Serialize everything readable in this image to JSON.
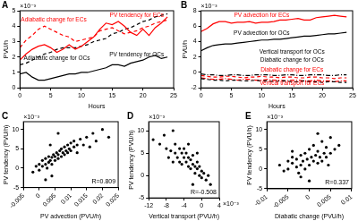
{
  "chart_data": [
    {
      "type": "line",
      "title": "A",
      "x_label": "Hours",
      "y_label": "PVU/h",
      "x": [
        0,
        1,
        2,
        3,
        4,
        5,
        6,
        7,
        8,
        9,
        10,
        11,
        12,
        13,
        14,
        15,
        16,
        17,
        18,
        19,
        20,
        21,
        22,
        23,
        24
      ],
      "xlim": [
        0,
        25
      ],
      "xticks": [
        0,
        5,
        10,
        15,
        20,
        25
      ],
      "ylim": [
        0,
        5
      ],
      "yticks": [
        0,
        1,
        2,
        3,
        4,
        5
      ],
      "grid": false,
      "annotations": [
        {
          "text": "×10⁻³",
          "axis": "y"
        }
      ],
      "series": [
        {
          "name": "PV tendency for ECs",
          "color": "#ff0000",
          "line_style": "solid",
          "values": [
            1.8,
            2.2,
            2.5,
            2.7,
            2.8,
            2.6,
            2.3,
            2.5,
            2.8,
            2.5,
            2.7,
            3.0,
            3.3,
            3.8,
            4.2,
            4.1,
            4.3,
            4.0,
            3.6,
            3.4,
            3.8,
            3.4,
            3.9,
            4.2,
            4.6
          ]
        },
        {
          "name": "Adiabatic change for ECs",
          "color": "#ff0000",
          "line_style": "dashed",
          "values": [
            2.6,
            3.1,
            3.4,
            3.8,
            4.0,
            3.8,
            3.6,
            3.4,
            3.3,
            3.0,
            3.1,
            3.2,
            3.3,
            3.7,
            3.8,
            3.9,
            3.7,
            3.5,
            3.6,
            3.7,
            3.9,
            4.0,
            4.2,
            4.3,
            4.4
          ]
        },
        {
          "name": "Adiabatic change for OCs",
          "color": "#000000",
          "line_style": "dashed",
          "values": [
            1.5,
            1.6,
            1.8,
            2.0,
            2.2,
            2.3,
            2.5,
            2.6,
            2.6,
            2.6,
            2.7,
            2.8,
            3.0,
            3.1,
            3.2,
            3.5,
            3.6,
            3.8,
            3.9,
            4.1,
            4.3,
            4.4,
            4.6,
            4.7,
            4.8
          ]
        },
        {
          "name": "PV tendency for OCs",
          "color": "#000000",
          "line_style": "solid",
          "values": [
            0.9,
            1.0,
            0.7,
            0.5,
            0.5,
            0.6,
            0.7,
            0.8,
            0.9,
            0.9,
            1.0,
            1.0,
            1.1,
            1.2,
            1.3,
            1.5,
            1.5,
            1.4,
            1.6,
            1.7,
            1.8,
            2.0,
            2.1,
            1.9,
            2.0
          ]
        }
      ]
    },
    {
      "type": "line",
      "title": "B",
      "x_label": "Hours",
      "y_label": "PVU/h",
      "x": [
        0,
        1,
        2,
        3,
        4,
        5,
        6,
        7,
        8,
        9,
        10,
        11,
        12,
        13,
        14,
        15,
        16,
        17,
        18,
        19,
        20,
        21,
        22,
        23,
        24
      ],
      "xlim": [
        0,
        25
      ],
      "xticks": [
        0,
        5,
        10,
        15,
        20,
        25
      ],
      "ylim": [
        -2,
        8
      ],
      "yticks": [
        -2,
        0,
        2,
        4,
        6,
        8
      ],
      "grid": false,
      "annotations": [
        {
          "text": "×10⁻³",
          "axis": "y"
        }
      ],
      "series": [
        {
          "name": "PV advection for ECs",
          "color": "#ff0000",
          "line_style": "solid",
          "values": [
            5.3,
            5.7,
            6.3,
            6.6,
            6.6,
            6.4,
            6.5,
            6.5,
            6.6,
            6.4,
            6.5,
            6.5,
            6.6,
            6.8,
            6.8,
            6.9,
            7.0,
            6.8,
            6.8,
            7.1,
            7.2,
            7.3,
            7.4,
            7.3,
            7.2
          ]
        },
        {
          "name": "PV advection for OCs",
          "color": "#000000",
          "line_style": "solid",
          "values": [
            2.8,
            3.2,
            3.5,
            3.6,
            3.7,
            3.7,
            3.8,
            3.9,
            4.0,
            4.1,
            4.2,
            4.2,
            4.3,
            4.3,
            4.4,
            4.5,
            4.6,
            4.7,
            4.7,
            4.8,
            4.9,
            5.0,
            5.0,
            5.1,
            5.2
          ]
        },
        {
          "name": "Vertical transport for OCs",
          "color": "#000000",
          "line_style": "dashed",
          "values": [
            -0.8,
            -0.9,
            -1.0,
            -1.0,
            -1.1,
            -1.0,
            -1.0,
            -1.1,
            -1.1,
            -1.0,
            -1.1,
            -1.1,
            -1.2,
            -1.1,
            -1.1,
            -1.2,
            -1.2,
            -1.1,
            -1.2,
            -1.2,
            -1.3,
            -1.2,
            -1.2,
            -1.3,
            -1.3
          ]
        },
        {
          "name": "Diabatic change for OCs",
          "color": "#000000",
          "line_style": "dashdot",
          "values": [
            -0.2,
            -0.3,
            -0.3,
            -0.4,
            -0.4,
            -0.3,
            -0.3,
            -0.4,
            -0.4,
            -0.3,
            -0.3,
            -0.3,
            -0.4,
            -0.4,
            -0.3,
            -0.3,
            -0.4,
            -0.4,
            -0.3,
            -0.3,
            -0.3,
            -0.4,
            -0.4,
            -0.3,
            -0.3
          ]
        },
        {
          "name": "Diabatic change for ECs",
          "color": "#ff0000",
          "line_style": "dashed",
          "values": [
            -0.4,
            -0.5,
            -0.6,
            -0.6,
            -0.5,
            -0.5,
            -0.6,
            -0.7,
            -0.6,
            -0.6,
            -0.5,
            -0.6,
            -0.6,
            -0.7,
            -0.6,
            -0.6,
            -0.7,
            -0.7,
            -0.6,
            -0.6,
            -0.7,
            -0.7,
            -0.8,
            -0.7,
            -0.7
          ]
        },
        {
          "name": "Vertical transport for ECs",
          "color": "#ff0000",
          "line_style": "dashdot",
          "values": [
            -0.7,
            -0.8,
            -0.9,
            -0.9,
            -0.8,
            -0.9,
            -1.0,
            -0.9,
            -0.9,
            -1.0,
            -1.0,
            -0.9,
            -1.0,
            -1.0,
            -1.1,
            -1.0,
            -1.0,
            -1.1,
            -1.1,
            -1.0,
            -1.1,
            -1.1,
            -1.2,
            -1.1,
            -1.1
          ]
        }
      ]
    },
    {
      "type": "scatter",
      "title": "C",
      "x_label": "PV advection (PVU/h)",
      "y_label": "PV tendency (PVU/h)",
      "color": "#000000",
      "marker": "circle",
      "grid": false,
      "xlim": [
        -0.005,
        0.025
      ],
      "xticks": [
        -0.005,
        0,
        0.005,
        0.01,
        0.015,
        0.02,
        0.025
      ],
      "ylim": [
        -5,
        12
      ],
      "yticks": [
        -5,
        0,
        5,
        10
      ],
      "annotations": [
        {
          "text": "×10⁻³",
          "axis": "y"
        },
        {
          "text": "R=0.809"
        }
      ],
      "x": [
        -0.002,
        -0.001,
        0,
        0,
        0.001,
        0.001,
        0.002,
        0.002,
        0.0025,
        0.003,
        0.003,
        0.0035,
        0.004,
        0.004,
        0.0045,
        0.005,
        0.005,
        0.0055,
        0.006,
        0.006,
        0.0065,
        0.007,
        0.007,
        0.0075,
        0.008,
        0.008,
        0.0085,
        0.009,
        0.009,
        0.0095,
        0.01,
        0.01,
        0.011,
        0.011,
        0.012,
        0.012,
        0.013,
        0.014,
        0.015,
        0.016,
        0.017,
        0.018,
        0.02,
        0.022,
        0.004,
        0.002,
        0.006,
        0.0035
      ],
      "values": [
        -1,
        0.5,
        -0.5,
        1,
        0.5,
        2,
        1,
        2.5,
        0,
        1.5,
        3,
        2,
        1,
        2.8,
        3.5,
        2,
        3,
        4,
        2.5,
        3.5,
        4.5,
        3,
        5,
        4,
        3.5,
        5.5,
        4.5,
        6,
        4,
        5,
        6.5,
        4.5,
        5.5,
        7,
        6,
        4,
        7.5,
        6,
        8,
        5.5,
        9,
        7,
        10,
        8,
        -2,
        -3,
        9,
        6
      ]
    },
    {
      "type": "scatter",
      "title": "D",
      "x_label": "Vertical transport (PVU/h)",
      "y_label": "PV tendency (PVU/h)",
      "color": "#000000",
      "marker": "circle",
      "grid": false,
      "xlim": [
        -12,
        4
      ],
      "xticks": [
        -12,
        -8,
        -4,
        0,
        4
      ],
      "ylim": [
        -5,
        12
      ],
      "yticks": [
        -5,
        0,
        5,
        10
      ],
      "annotations": [
        {
          "text": "×10⁻³",
          "axis": "y"
        },
        {
          "text": "×10⁻³",
          "axis": "x"
        },
        {
          "text": "R=-0.508"
        }
      ],
      "x": [
        -11,
        -9.5,
        -8,
        -7.5,
        -7,
        -6.5,
        -6,
        -6,
        -5.5,
        -5,
        -5,
        -4.5,
        -4.5,
        -4,
        -4,
        -3.5,
        -3.5,
        -3,
        -3,
        -2.5,
        -2.5,
        -2,
        -2,
        -1.5,
        -1.5,
        -1,
        -1,
        -0.5,
        -0.5,
        0,
        0,
        0.5,
        1,
        1.5,
        2,
        -8.5,
        -6.5,
        -2,
        -3,
        -1
      ],
      "values": [
        8,
        7,
        6,
        4,
        5.5,
        3,
        5,
        7,
        4,
        3,
        6,
        5,
        2.5,
        4,
        6,
        3,
        5,
        2,
        4,
        3.5,
        1.5,
        2.5,
        4.5,
        2,
        0.5,
        1.5,
        3,
        0,
        2,
        1,
        -0.5,
        0.5,
        -1,
        0,
        -2,
        9,
        10,
        -2,
        7,
        5
      ]
    },
    {
      "type": "scatter",
      "title": "E",
      "x_label": "Diabatic change (PVU/h)",
      "y_label": "PV tendency (PVU/h)",
      "color": "#000000",
      "marker": "circle",
      "grid": false,
      "xlim": [
        -0.01,
        0.01
      ],
      "xticks": [
        -0.01,
        -0.005,
        0,
        0.005,
        0.01
      ],
      "ylim": [
        -5,
        12
      ],
      "yticks": [
        -5,
        0,
        5,
        10
      ],
      "annotations": [
        {
          "text": "×10⁻³",
          "axis": "y"
        },
        {
          "text": "R=0.337"
        }
      ],
      "x": [
        -0.007,
        -0.006,
        -0.005,
        -0.005,
        -0.004,
        -0.004,
        -0.003,
        -0.003,
        -0.0025,
        -0.002,
        -0.002,
        -0.0015,
        -0.001,
        -0.001,
        -0.0005,
        0,
        0,
        0.0005,
        0.001,
        0.001,
        0.0015,
        0.002,
        0.002,
        0.0025,
        0.003,
        0.003,
        0.0035,
        0.004,
        0.004,
        0.005,
        0.005,
        0.006,
        0.007,
        -0.002,
        0,
        0.002,
        -0.004,
        0.0045
      ],
      "values": [
        1,
        -0.5,
        2,
        0,
        1.5,
        3,
        0.5,
        2.5,
        -1,
        1,
        3.5,
        2,
        0,
        4,
        2.5,
        1,
        5,
        3,
        2,
        6,
        3.5,
        1.5,
        4.5,
        3,
        2,
        7,
        4,
        3,
        5.5,
        4,
        8,
        5,
        6,
        -2,
        -3,
        9,
        4.5,
        1
      ]
    }
  ]
}
